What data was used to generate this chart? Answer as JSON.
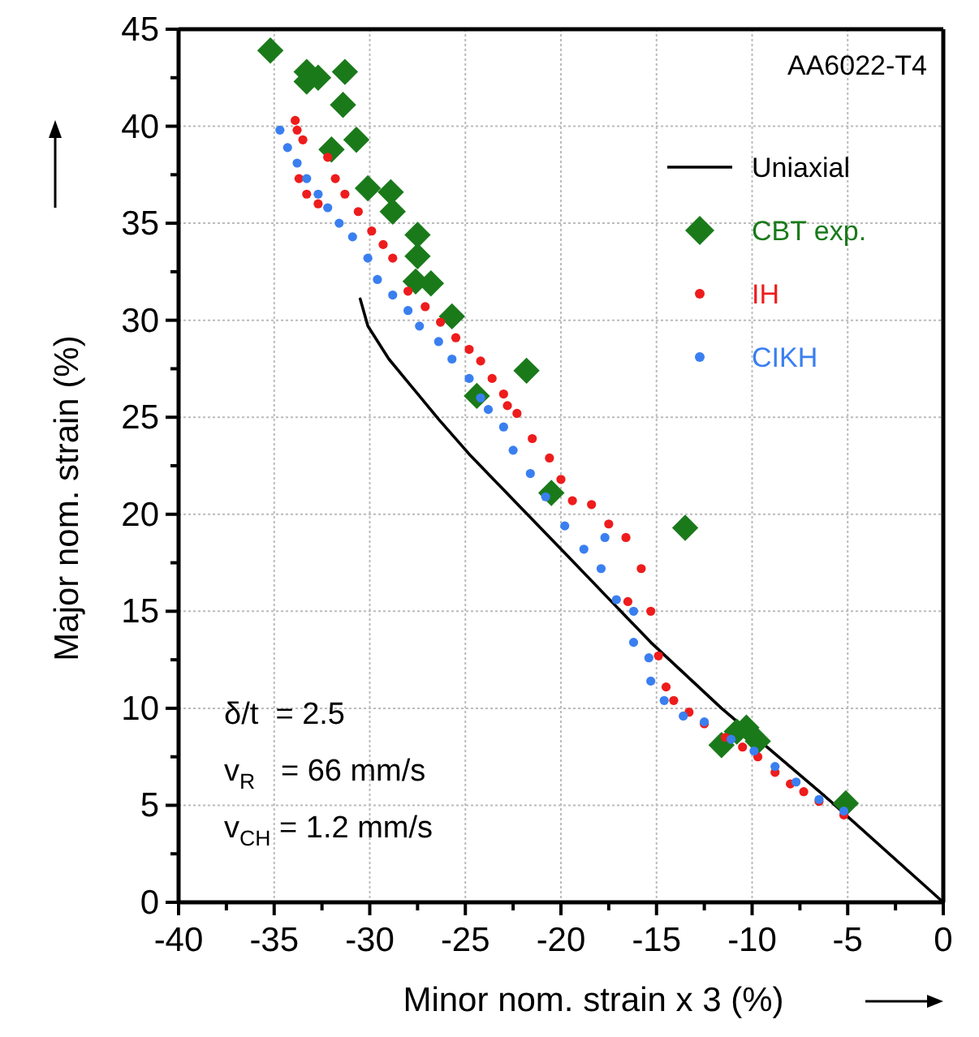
{
  "chart_data": {
    "type": "scatter",
    "xlabel": "Minor nom. strain x 3 (%)",
    "ylabel": "Major nom. strain (%)",
    "xlim": [
      -40,
      0
    ],
    "xticks": [
      -40,
      {
        "value": -37.5,
        "label": null
      },
      -35,
      {
        "value": -32.5,
        "label": null
      },
      -30,
      {
        "value": -27.5,
        "label": null
      },
      -25,
      {
        "value": -22.5,
        "label": null
      },
      -20,
      {
        "value": -17.5,
        "label": null
      },
      -15,
      {
        "value": -12.5,
        "label": null
      },
      -10,
      {
        "value": -7.5,
        "label": null
      },
      -5,
      {
        "value": -2.5,
        "label": null
      },
      0
    ],
    "ylim": [
      0,
      45
    ],
    "yticks": [
      0,
      {
        "value": 2.5,
        "label": null
      },
      5,
      {
        "value": 7.5,
        "label": null
      },
      10,
      {
        "value": 12.5,
        "label": null
      },
      15,
      {
        "value": 17.5,
        "label": null
      },
      20,
      {
        "value": 22.5,
        "label": null
      },
      25,
      {
        "value": 27.5,
        "label": null
      },
      30,
      {
        "value": 32.5,
        "label": null
      },
      35,
      {
        "value": 37.5,
        "label": null
      },
      40,
      {
        "value": 42.5,
        "label": null
      },
      45
    ],
    "grid": true,
    "legend": "top right",
    "annotations": [
      "AA6022-T4",
      "δ/t  = 2.5",
      "v$_{R}$   = 66 mm/s",
      "v$_{CH}$ = 1.2 mm/s"
    ],
    "series": [
      {
        "name": "Uniaxial",
        "type": "line",
        "marker": "none",
        "line_style": "solid",
        "color": "#000000",
        "x": [
          -30.5,
          -30.1,
          -29.0,
          -26.4,
          -24.8,
          -19.8,
          -15.3,
          -11.6,
          -6.0,
          0
        ],
        "values": [
          31.1,
          29.7,
          28.0,
          24.9,
          23.1,
          18.0,
          13.4,
          10.0,
          5.3,
          0
        ]
      },
      {
        "name": "CBT exp.",
        "marker": "diamond",
        "color": "#1a7a1a",
        "x": [
          -35.2,
          -33.3,
          -33.3,
          -32.7,
          -31.3,
          -31.4,
          -30.7,
          -32.0,
          -30.1,
          -28.9,
          -28.8,
          -27.5,
          -27.5,
          -26.8,
          -27.6,
          -25.7,
          -21.8,
          -24.4,
          -20.5,
          -13.5,
          -10.3,
          -10.8,
          -9.7,
          -11.6,
          -5.1
        ],
        "values": [
          43.9,
          42.8,
          42.3,
          42.5,
          42.8,
          41.1,
          39.3,
          38.8,
          36.8,
          36.6,
          35.6,
          34.4,
          33.3,
          31.9,
          32.0,
          30.2,
          27.4,
          26.1,
          21.1,
          19.3,
          9.0,
          8.8,
          8.3,
          8.1,
          5.1
        ]
      },
      {
        "name": "IH",
        "marker": "circle",
        "color": "#ee1c1c",
        "x": [
          -33.9,
          -33.8,
          -33.5,
          -33.7,
          -33.3,
          -32.7,
          -32.2,
          -31.8,
          -31.3,
          -30.6,
          -29.9,
          -29.3,
          -28.8,
          -28.0,
          -27.1,
          -26.3,
          -25.5,
          -24.8,
          -24.2,
          -23.6,
          -23.0,
          -22.8,
          -22.3,
          -21.5,
          -20.6,
          -20.0,
          -19.4,
          -18.4,
          -17.5,
          -16.6,
          -15.8,
          -15.3,
          -16.5,
          -14.9,
          -14.5,
          -14.1,
          -13.3,
          -12.5,
          -11.4,
          -10.5,
          -9.7,
          -8.8,
          -8.0,
          -7.3,
          -6.5,
          -5.2
        ],
        "values": [
          40.3,
          39.8,
          39.3,
          37.3,
          36.5,
          36.0,
          38.4,
          37.3,
          36.5,
          35.6,
          34.6,
          33.9,
          33.2,
          31.5,
          30.7,
          29.9,
          29.1,
          28.5,
          27.9,
          27.0,
          26.2,
          25.6,
          25.2,
          23.9,
          22.9,
          21.8,
          20.7,
          20.5,
          19.5,
          18.8,
          17.2,
          15.0,
          15.5,
          12.7,
          11.1,
          10.4,
          9.8,
          9.2,
          8.5,
          8.0,
          7.5,
          6.7,
          6.1,
          5.7,
          5.2,
          4.5
        ]
      },
      {
        "name": "CIKH",
        "marker": "circle",
        "color": "#3a7ff0",
        "x": [
          -34.7,
          -34.3,
          -33.8,
          -33.3,
          -32.7,
          -32.2,
          -31.6,
          -30.9,
          -30.1,
          -29.6,
          -28.8,
          -28.0,
          -27.4,
          -26.4,
          -25.7,
          -24.8,
          -24.2,
          -23.8,
          -23.0,
          -22.5,
          -21.6,
          -20.8,
          -19.8,
          -18.8,
          -17.9,
          -17.7,
          -17.1,
          -16.2,
          -16.2,
          -15.4,
          -15.3,
          -14.6,
          -13.6,
          -12.5,
          -11.1,
          -9.9,
          -8.8,
          -7.7,
          -6.5,
          -5.2
        ],
        "values": [
          39.8,
          38.9,
          38.1,
          37.3,
          36.5,
          35.8,
          35.0,
          34.3,
          33.2,
          32.1,
          31.3,
          30.5,
          29.7,
          28.9,
          28.0,
          27.0,
          26.0,
          25.4,
          24.5,
          23.3,
          22.1,
          20.9,
          19.4,
          18.2,
          17.2,
          18.8,
          15.6,
          15.0,
          13.4,
          12.6,
          11.4,
          10.4,
          9.6,
          9.3,
          8.4,
          7.8,
          7.0,
          6.2,
          5.3,
          4.7
        ]
      }
    ]
  }
}
